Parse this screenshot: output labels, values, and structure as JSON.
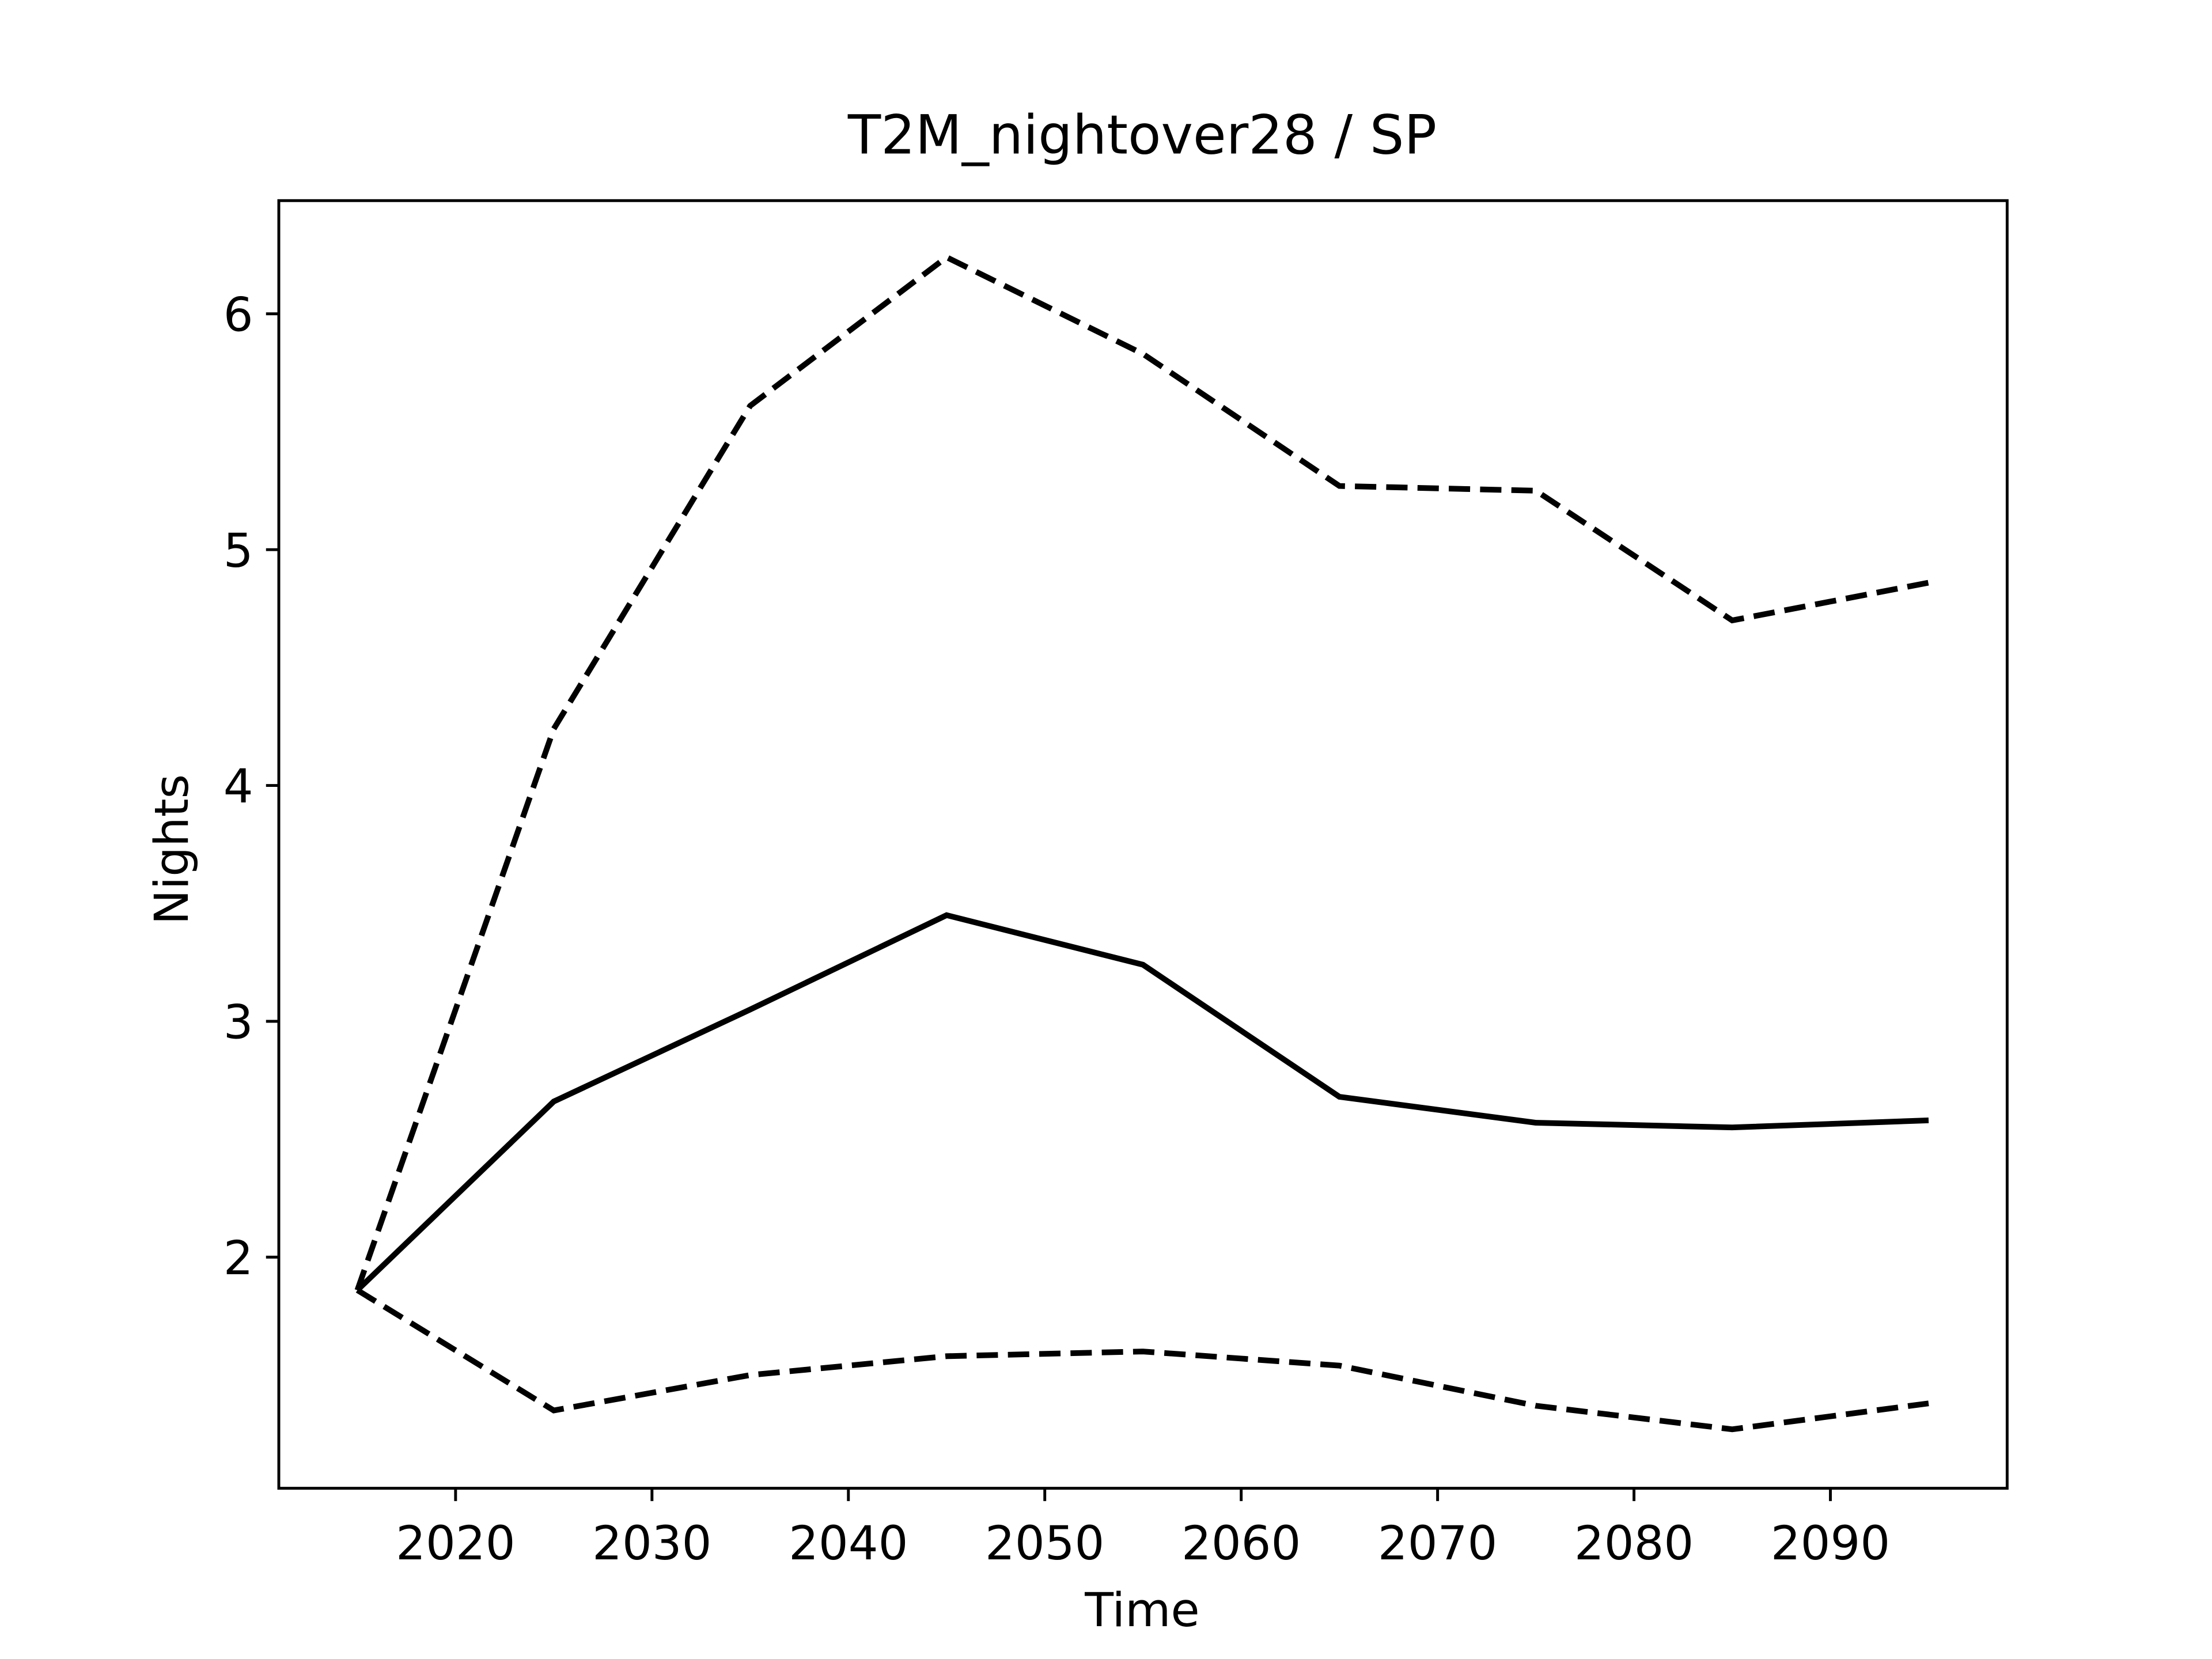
{
  "chart_data": {
    "type": "line",
    "title": "T2M_nightover28 / SP",
    "x_label": "Time",
    "y_label": "Nights",
    "x": [
      2015,
      2025,
      2035,
      2045,
      2055,
      2065,
      2075,
      2085,
      2095
    ],
    "series": [
      {
        "color": "#000000",
        "linestyle": "solid",
        "values": [
          1.86,
          2.66,
          3.05,
          3.45,
          3.24,
          2.68,
          2.57,
          2.55,
          2.58
        ]
      },
      {
        "color": "#000000",
        "linestyle": "dashed",
        "values": [
          1.86,
          4.24,
          5.61,
          6.24,
          5.83,
          5.27,
          5.25,
          4.7,
          4.86
        ]
      },
      {
        "color": "#000000",
        "linestyle": "dashed",
        "values": [
          1.86,
          1.35,
          1.5,
          1.58,
          1.6,
          1.54,
          1.37,
          1.27,
          1.38
        ]
      }
    ],
    "xlim": [
      2011,
      2099
    ],
    "xticks": [
      2020,
      2030,
      2040,
      2050,
      2060,
      2070,
      2080,
      2090
    ],
    "ylim": [
      1.02,
      6.48
    ],
    "yticks": [
      2,
      3,
      4,
      5,
      6
    ],
    "grid": false
  }
}
